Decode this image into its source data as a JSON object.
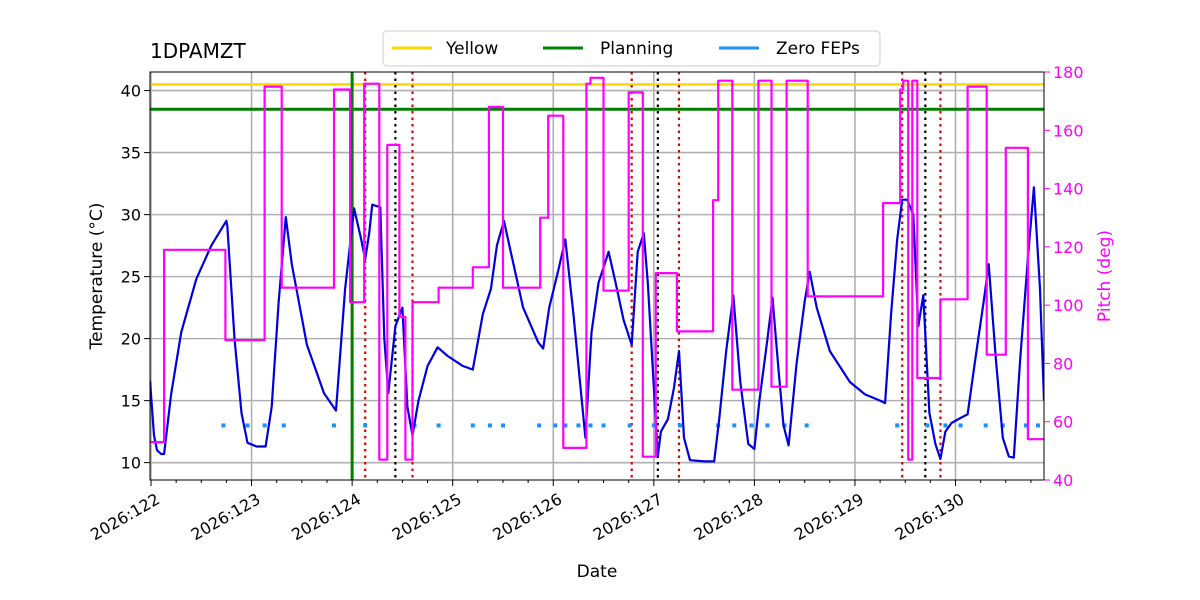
{
  "chart_data": {
    "type": "line",
    "title": "1DPAMZT",
    "xlabel": "Date",
    "ylabel": "Temperature ($^\\circ$C)",
    "y2label": "Pitch (deg)",
    "xlim": [
      121.99,
      130.88
    ],
    "ylim": [
      8.6,
      41.5
    ],
    "y2lim": [
      40,
      180
    ],
    "xticks": [
      {
        "value": 122,
        "label": "2026:122"
      },
      {
        "value": 123,
        "label": "2026:123"
      },
      {
        "value": 124,
        "label": "2026:124"
      },
      {
        "value": 125,
        "label": "2026:125"
      },
      {
        "value": 126,
        "label": "2026:126"
      },
      {
        "value": 127,
        "label": "2026:127"
      },
      {
        "value": 128,
        "label": "2026:128"
      },
      {
        "value": 129,
        "label": "2026:129"
      },
      {
        "value": 130,
        "label": "2026:130"
      }
    ],
    "yticks": [
      10,
      15,
      20,
      25,
      30,
      35,
      40
    ],
    "y2ticks": [
      40,
      60,
      80,
      100,
      120,
      140,
      160,
      180
    ],
    "grid": true,
    "legend": {
      "placement": "top-center",
      "entries": [
        {
          "label": "Yellow",
          "color": "#ffd700"
        },
        {
          "label": "Planning",
          "color": "#008000"
        },
        {
          "label": "Zero FEPs",
          "color": "#1e90ff"
        }
      ]
    },
    "limits": {
      "yellow": 40.5,
      "planning": 38.5
    },
    "planning_marker_x": 124.0,
    "red_dotted_x": [
      124.13,
      124.6,
      126.78,
      127.25,
      129.47,
      129.85
    ],
    "black_dotted_x": [
      124.43,
      127.04,
      129.7
    ],
    "zero_feps": {
      "y": 13.0,
      "x": [
        122.72,
        122.96,
        123.13,
        123.32,
        123.82,
        124.13,
        124.62,
        124.86,
        125.2,
        125.37,
        125.5,
        125.86,
        126.02,
        126.12,
        126.25,
        126.37,
        126.5,
        126.76,
        127.0,
        127.26,
        127.64,
        127.8,
        127.97,
        128.13,
        128.3,
        128.52,
        129.42,
        129.72,
        129.9,
        130.05,
        130.3,
        130.47,
        130.7,
        130.82
      ]
    },
    "series": [
      {
        "color": "#0000dd",
        "axis": "left",
        "points": [
          [
            121.99,
            16.6
          ],
          [
            122.03,
            12.2
          ],
          [
            122.06,
            11.0
          ],
          [
            122.1,
            10.7
          ],
          [
            122.13,
            10.7
          ],
          [
            122.2,
            15.5
          ],
          [
            122.3,
            20.5
          ],
          [
            122.45,
            24.8
          ],
          [
            122.6,
            27.5
          ],
          [
            122.75,
            29.5
          ],
          [
            122.76,
            29.0
          ],
          [
            122.83,
            20.0
          ],
          [
            122.9,
            14.0
          ],
          [
            122.96,
            11.6
          ],
          [
            123.05,
            11.3
          ],
          [
            123.14,
            11.3
          ],
          [
            123.2,
            14.5
          ],
          [
            123.27,
            23.0
          ],
          [
            123.34,
            29.8
          ],
          [
            123.4,
            26.0
          ],
          [
            123.55,
            19.5
          ],
          [
            123.72,
            15.6
          ],
          [
            123.84,
            14.2
          ],
          [
            123.93,
            24.0
          ],
          [
            124.02,
            30.5
          ],
          [
            124.09,
            28.0
          ],
          [
            124.13,
            26.4
          ],
          [
            124.17,
            28.5
          ],
          [
            124.2,
            30.8
          ],
          [
            124.28,
            30.6
          ],
          [
            124.32,
            20.0
          ],
          [
            124.36,
            15.6
          ],
          [
            124.43,
            21.0
          ],
          [
            124.5,
            22.5
          ],
          [
            124.55,
            14.5
          ],
          [
            124.6,
            12.2
          ],
          [
            124.66,
            15.0
          ],
          [
            124.75,
            17.8
          ],
          [
            124.85,
            19.3
          ],
          [
            124.95,
            18.6
          ],
          [
            125.1,
            17.8
          ],
          [
            125.2,
            17.5
          ],
          [
            125.3,
            22.0
          ],
          [
            125.38,
            24.0
          ],
          [
            125.44,
            27.5
          ],
          [
            125.51,
            29.5
          ],
          [
            125.55,
            28.0
          ],
          [
            125.7,
            22.5
          ],
          [
            125.85,
            19.7
          ],
          [
            125.9,
            19.2
          ],
          [
            125.96,
            22.5
          ],
          [
            126.05,
            25.5
          ],
          [
            126.12,
            28.0
          ],
          [
            126.2,
            22.0
          ],
          [
            126.32,
            12.0
          ],
          [
            126.38,
            20.5
          ],
          [
            126.45,
            24.5
          ],
          [
            126.55,
            27.0
          ],
          [
            126.62,
            24.5
          ],
          [
            126.7,
            21.5
          ],
          [
            126.78,
            19.5
          ],
          [
            126.84,
            27.0
          ],
          [
            126.9,
            28.5
          ],
          [
            126.94,
            24.5
          ],
          [
            127.04,
            10.5
          ],
          [
            127.07,
            12.5
          ],
          [
            127.14,
            13.5
          ],
          [
            127.2,
            16.0
          ],
          [
            127.25,
            19.0
          ],
          [
            127.3,
            12.0
          ],
          [
            127.36,
            10.2
          ],
          [
            127.5,
            10.1
          ],
          [
            127.6,
            10.1
          ],
          [
            127.65,
            13.5
          ],
          [
            127.72,
            19.0
          ],
          [
            127.79,
            23.5
          ],
          [
            127.86,
            16.5
          ],
          [
            127.94,
            11.5
          ],
          [
            128.0,
            11.1
          ],
          [
            128.05,
            15.0
          ],
          [
            128.13,
            20.0
          ],
          [
            128.18,
            23.3
          ],
          [
            128.24,
            17.5
          ],
          [
            128.29,
            13.0
          ],
          [
            128.34,
            11.4
          ],
          [
            128.42,
            18.0
          ],
          [
            128.5,
            23.0
          ],
          [
            128.55,
            25.4
          ],
          [
            128.62,
            22.5
          ],
          [
            128.75,
            19.0
          ],
          [
            128.95,
            16.5
          ],
          [
            129.1,
            15.5
          ],
          [
            129.25,
            15.0
          ],
          [
            129.3,
            14.8
          ],
          [
            129.36,
            22.0
          ],
          [
            129.42,
            28.0
          ],
          [
            129.47,
            31.2
          ],
          [
            129.52,
            31.2
          ],
          [
            129.58,
            30.0
          ],
          [
            129.63,
            21.0
          ],
          [
            129.68,
            23.5
          ],
          [
            129.74,
            14.0
          ],
          [
            129.8,
            11.5
          ],
          [
            129.85,
            10.3
          ],
          [
            129.9,
            12.5
          ],
          [
            129.96,
            13.2
          ],
          [
            130.05,
            13.6
          ],
          [
            130.12,
            13.9
          ],
          [
            130.2,
            18.5
          ],
          [
            130.28,
            23.0
          ],
          [
            130.33,
            26.0
          ],
          [
            130.4,
            18.5
          ],
          [
            130.47,
            12.0
          ],
          [
            130.53,
            10.5
          ],
          [
            130.58,
            10.4
          ],
          [
            130.64,
            18.0
          ],
          [
            130.72,
            26.5
          ],
          [
            130.78,
            32.2
          ],
          [
            130.84,
            24.0
          ],
          [
            130.88,
            15.0
          ]
        ]
      },
      {
        "color": "#ff00ff",
        "axis": "right",
        "points": [
          [
            121.99,
            53
          ],
          [
            122.1,
            53
          ],
          [
            122.13,
            53
          ],
          [
            122.13,
            119
          ],
          [
            122.74,
            119
          ],
          [
            122.74,
            88
          ],
          [
            123.13,
            88
          ],
          [
            123.13,
            175
          ],
          [
            123.3,
            175
          ],
          [
            123.3,
            106
          ],
          [
            123.82,
            106
          ],
          [
            123.82,
            174
          ],
          [
            123.98,
            174
          ],
          [
            123.98,
            101
          ],
          [
            124.12,
            101
          ],
          [
            124.12,
            176
          ],
          [
            124.27,
            176
          ],
          [
            124.27,
            47
          ],
          [
            124.35,
            47
          ],
          [
            124.35,
            155
          ],
          [
            124.47,
            155
          ],
          [
            124.47,
            96
          ],
          [
            124.53,
            96
          ],
          [
            124.53,
            47
          ],
          [
            124.6,
            47
          ],
          [
            124.6,
            101
          ],
          [
            124.86,
            101
          ],
          [
            124.86,
            106
          ],
          [
            125.2,
            106
          ],
          [
            125.2,
            113
          ],
          [
            125.36,
            113
          ],
          [
            125.36,
            168
          ],
          [
            125.5,
            168
          ],
          [
            125.5,
            106
          ],
          [
            125.87,
            106
          ],
          [
            125.87,
            130
          ],
          [
            125.95,
            130
          ],
          [
            125.95,
            165
          ],
          [
            126.1,
            165
          ],
          [
            126.1,
            51
          ],
          [
            126.33,
            51
          ],
          [
            126.33,
            176
          ],
          [
            126.37,
            176
          ],
          [
            126.37,
            178
          ],
          [
            126.5,
            178
          ],
          [
            126.5,
            105
          ],
          [
            126.75,
            105
          ],
          [
            126.75,
            173
          ],
          [
            126.89,
            173
          ],
          [
            126.89,
            48
          ],
          [
            127.02,
            48
          ],
          [
            127.02,
            111
          ],
          [
            127.23,
            111
          ],
          [
            127.23,
            91
          ],
          [
            127.59,
            91
          ],
          [
            127.59,
            136
          ],
          [
            127.64,
            136
          ],
          [
            127.64,
            177
          ],
          [
            127.78,
            177
          ],
          [
            127.78,
            71
          ],
          [
            128.04,
            71
          ],
          [
            128.04,
            177
          ],
          [
            128.17,
            177
          ],
          [
            128.17,
            72
          ],
          [
            128.32,
            72
          ],
          [
            128.32,
            177
          ],
          [
            128.53,
            177
          ],
          [
            128.53,
            103
          ],
          [
            129.28,
            103
          ],
          [
            129.28,
            135
          ],
          [
            129.45,
            135
          ],
          [
            129.45,
            174
          ],
          [
            129.48,
            174
          ],
          [
            129.48,
            177
          ],
          [
            129.53,
            177
          ],
          [
            129.53,
            47
          ],
          [
            129.57,
            47
          ],
          [
            129.57,
            177
          ],
          [
            129.62,
            177
          ],
          [
            129.62,
            75
          ],
          [
            129.85,
            75
          ],
          [
            129.85,
            102
          ],
          [
            130.12,
            102
          ],
          [
            130.12,
            175
          ],
          [
            130.31,
            175
          ],
          [
            130.31,
            83
          ],
          [
            130.5,
            83
          ],
          [
            130.5,
            154
          ],
          [
            130.72,
            154
          ],
          [
            130.72,
            54
          ],
          [
            130.88,
            54
          ]
        ]
      }
    ]
  }
}
